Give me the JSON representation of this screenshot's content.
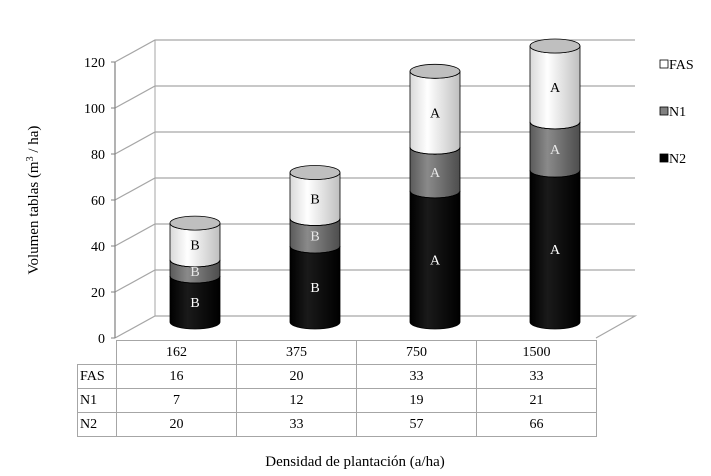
{
  "chart_data": {
    "type": "bar",
    "subtype": "stacked-3d-cylinder",
    "title": "",
    "xlabel": "Densidad de plantación (a/ha)",
    "ylabel": "Volumen tablas (m3 / ha)",
    "ylabel_parts": {
      "before": "Volumen tablas (m",
      "sup": "3",
      "after": " / ha)"
    },
    "ylim": [
      0,
      120
    ],
    "yticks": [
      0,
      20,
      40,
      60,
      80,
      100,
      120
    ],
    "grid": true,
    "legend_position": "right",
    "categories": [
      "162",
      "375",
      "750",
      "1500"
    ],
    "series": [
      {
        "name": "N2",
        "color": "#000000",
        "values": [
          20,
          33,
          57,
          66
        ],
        "letters": [
          "B",
          "B",
          "A",
          "A"
        ]
      },
      {
        "name": "N1",
        "color": "#808080",
        "values": [
          7,
          12,
          19,
          21
        ],
        "letters": [
          "B",
          "B",
          "A",
          "A"
        ]
      },
      {
        "name": "FAS",
        "color": "#ffffff",
        "values": [
          16,
          20,
          33,
          33
        ],
        "letters": [
          "B",
          "B",
          "A",
          "A"
        ]
      }
    ],
    "legend": [
      "FAS",
      "N1",
      "N2"
    ],
    "data_table": {
      "header": [
        "162",
        "375",
        "750",
        "1500"
      ],
      "rows": [
        {
          "label": "FAS",
          "values": [
            "16",
            "20",
            "33",
            "33"
          ]
        },
        {
          "label": "N1",
          "values": [
            "7",
            "12",
            "19",
            "21"
          ]
        },
        {
          "label": "N2",
          "values": [
            "20",
            "33",
            "57",
            "66"
          ]
        }
      ]
    }
  }
}
